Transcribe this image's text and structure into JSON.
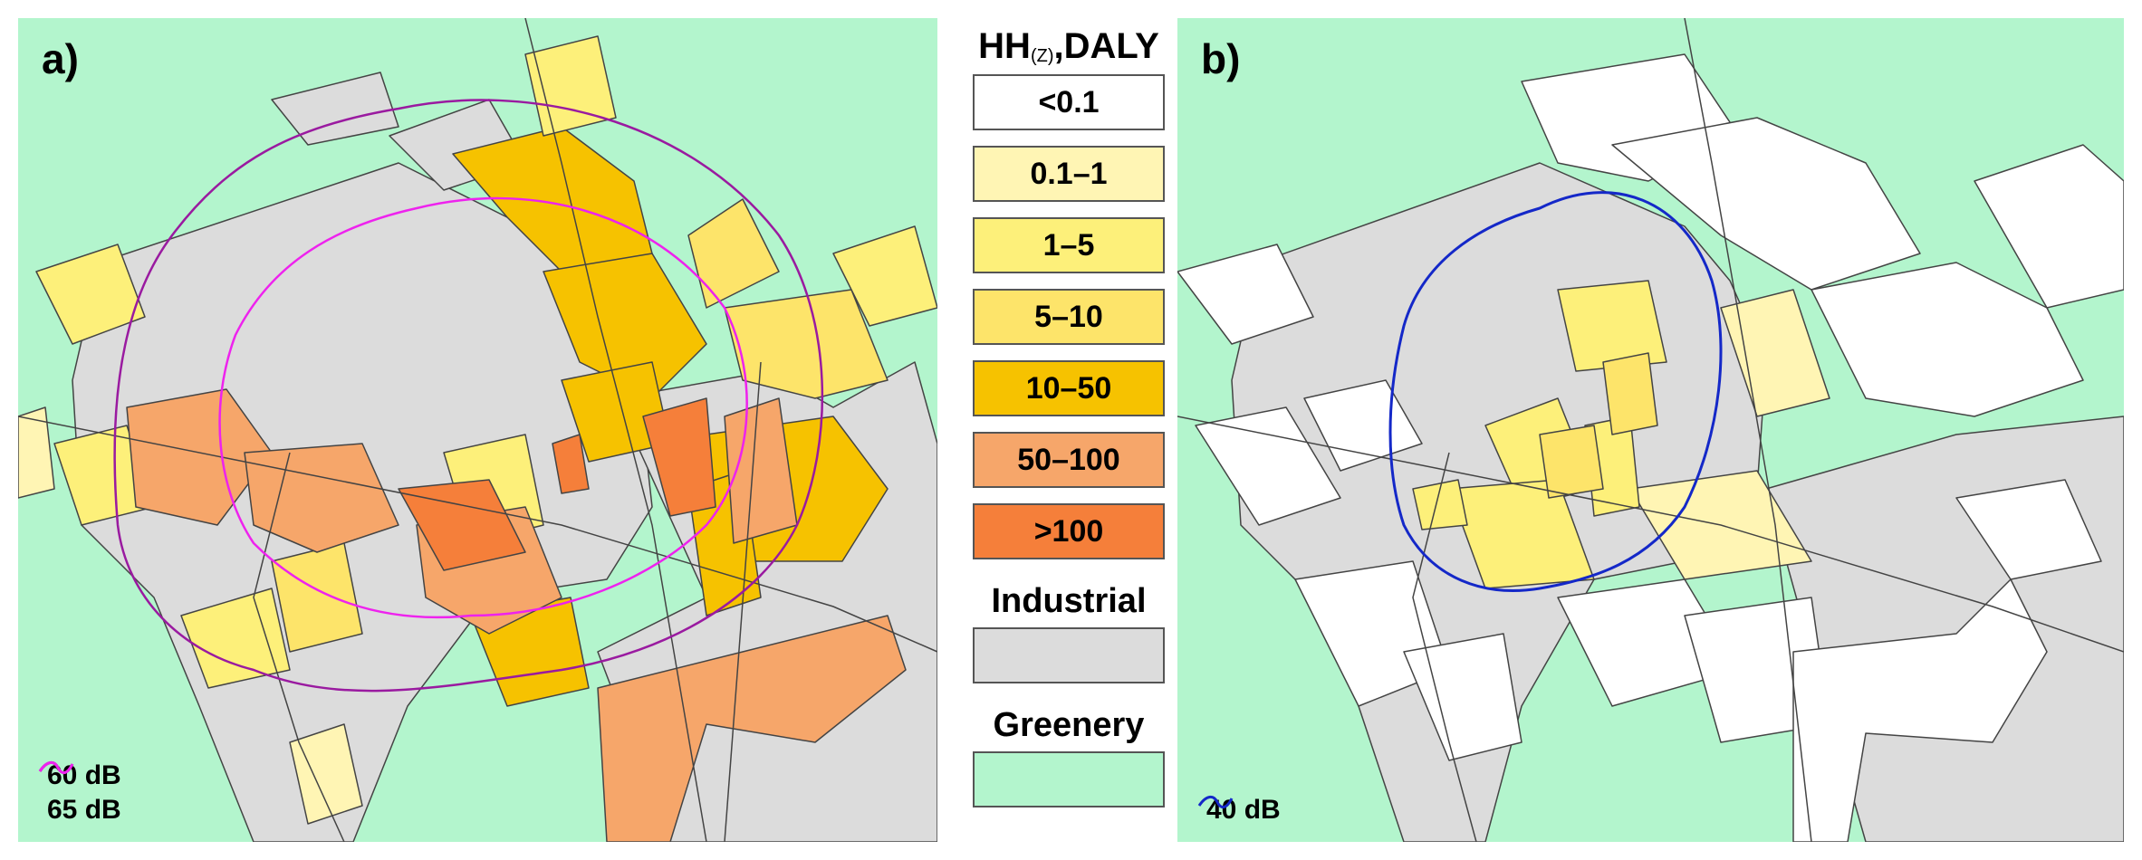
{
  "panels": [
    {
      "label": "a)",
      "contours": [
        {
          "label": "60 dB",
          "color": "#9a1aa0"
        },
        {
          "label": "65 dB",
          "color": "#ee22ee"
        }
      ]
    },
    {
      "label": "b)",
      "contours": [
        {
          "label": "40 dB",
          "color": "#1428c8"
        }
      ]
    }
  ],
  "legend": {
    "title": "HH",
    "title_sub": "(Z)",
    "title_rest": ",DALY",
    "classes": [
      {
        "label": "<0.1",
        "color": "#ffffff"
      },
      {
        "label": "0.1–1",
        "color": "#fff5b4"
      },
      {
        "label": "1–5",
        "color": "#fdf07a"
      },
      {
        "label": "5–10",
        "color": "#fde46a"
      },
      {
        "label": "10–50",
        "color": "#f6c200"
      },
      {
        "label": "50–100",
        "color": "#f6a66a"
      },
      {
        "label": ">100",
        "color": "#f57f3a"
      }
    ],
    "industrial_label": "Industrial",
    "industrial_color": "#dcdcdc",
    "greenery_label": "Greenery",
    "greenery_color": "#b3f5cd"
  }
}
